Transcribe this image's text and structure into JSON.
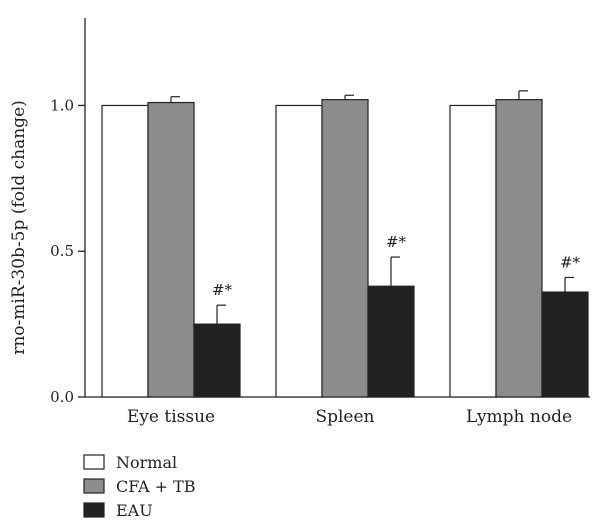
{
  "chart_data": {
    "type": "bar",
    "ylabel": "rno-miR-30b-5p (fold change)",
    "xlabel": "",
    "ylim": [
      0,
      1.3
    ],
    "yticks": [
      "0.0",
      "0.5",
      "1.0"
    ],
    "categories": [
      "Eye tissue",
      "Spleen",
      "Lymph node"
    ],
    "series": [
      {
        "name": "Normal",
        "color": "#ffffff",
        "values": [
          1.0,
          1.0,
          1.0
        ],
        "errors": [
          0,
          0,
          0
        ]
      },
      {
        "name": "CFA + TB",
        "color": "#8c8c8c",
        "values": [
          1.01,
          1.02,
          1.02
        ],
        "errors": [
          0.02,
          0.015,
          0.03
        ]
      },
      {
        "name": "EAU",
        "color": "#222222",
        "values": [
          0.25,
          0.38,
          0.36
        ],
        "errors": [
          0.065,
          0.1,
          0.05
        ]
      }
    ],
    "annotations": [
      {
        "category": "Eye tissue",
        "series": "EAU",
        "text": "#*"
      },
      {
        "category": "Spleen",
        "series": "EAU",
        "text": "#*"
      },
      {
        "category": "Lymph node",
        "series": "EAU",
        "text": "#*"
      }
    ],
    "grid": false,
    "legend_position": "bottom-left"
  }
}
